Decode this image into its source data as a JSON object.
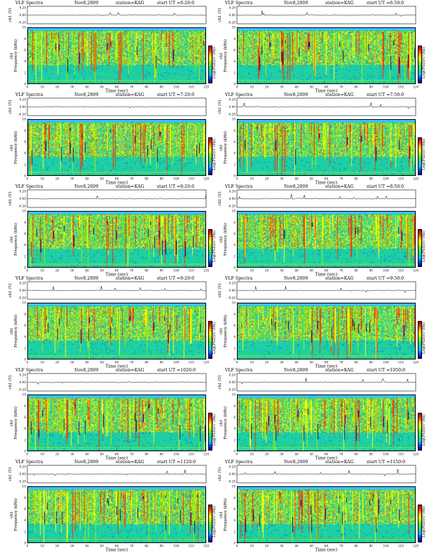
{
  "page": {
    "panel_title": "VLF Spectra",
    "date": "Nov8,2009",
    "station": "station=KAG",
    "start_prefix": "start",
    "panels": [
      {
        "start_label": "UT  =6:20:0",
        "seed": 11
      },
      {
        "start_label": "UT  =6:50:0",
        "seed": 23
      },
      {
        "start_label": "UT  =7:20:0",
        "seed": 37
      },
      {
        "start_label": "UT  =7:50:0",
        "seed": 41
      },
      {
        "start_label": "UT  =8:20:0",
        "seed": 53
      },
      {
        "start_label": "UT  =8:50:0",
        "seed": 67
      },
      {
        "start_label": "UT  =9:20:0",
        "seed": 71
      },
      {
        "start_label": "UT  =9:50:0",
        "seed": 83
      },
      {
        "start_label": "UT  =1020:0",
        "seed": 97
      },
      {
        "start_label": "UT  =1050:0",
        "seed": 101
      },
      {
        "start_label": "UT  =1120:0",
        "seed": 113
      },
      {
        "start_label": "UT  =1150:0",
        "seed": 127
      }
    ],
    "waveform_ylabel": "ch1 (V)",
    "waveform_ticks": [
      "0.20",
      "0.00",
      "-0.20"
    ],
    "spectrum_ylabel_1": "ch1",
    "spectrum_ylabel_2": "Frequency  (kHz)",
    "freq_ticks": [
      "0",
      "2",
      "4",
      "6",
      "8",
      "10"
    ],
    "time_ticks": [
      "0",
      "10",
      "20",
      "30",
      "40",
      "50",
      "60",
      "70",
      "80",
      "90",
      "100",
      "110",
      "120"
    ],
    "xlabel": "Time  (sec)",
    "colorbar_label": "Log(PSD)(V²/Hz)"
  },
  "chart_data": {
    "type": "heatmap",
    "x_range_sec": [
      0,
      120
    ],
    "y_range_khz": [
      0,
      10
    ],
    "waveform_range_v": [
      -0.2,
      0.2
    ],
    "colormap": [
      "#00008f",
      "#0040ff",
      "#00c0ff",
      "#20d0a0",
      "#40e060",
      "#a0f000",
      "#ffff00",
      "#ffb000",
      "#ff3000",
      "#a00000"
    ],
    "background_color": "#20d0a0",
    "active_band_khz": [
      3.5,
      9.5
    ],
    "upper_band_color": "#40c0ff",
    "upper_band_khz": [
      9.6,
      10
    ]
  }
}
